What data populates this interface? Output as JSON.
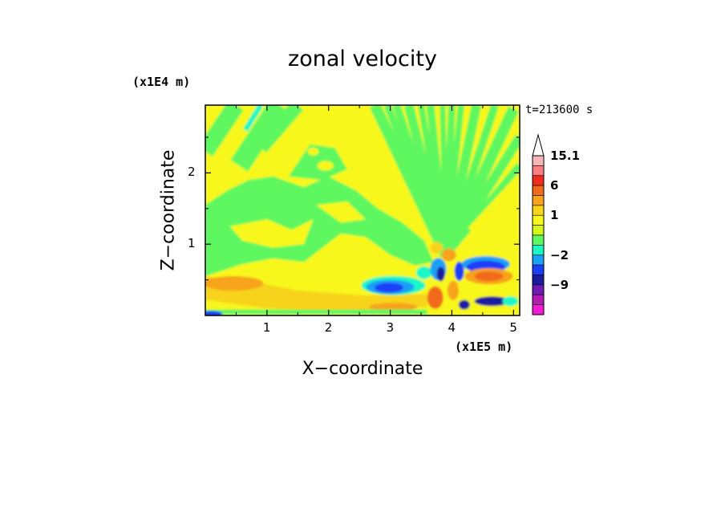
{
  "chart_data": {
    "type": "heatmap",
    "title": "zonal velocity",
    "xlabel": "X−coordinate",
    "ylabel": "Z−coordinate",
    "x_scale_note": "(x1E5 m)",
    "z_scale_note": "(x1E4 m)",
    "time_label": "t=213600 s",
    "xlim": [
      0,
      5.1
    ],
    "ylim": [
      0,
      2.95
    ],
    "x_ticks": [
      "1",
      "2",
      "3",
      "4",
      "5"
    ],
    "x_tick_values": [
      1,
      2,
      3,
      4,
      5
    ],
    "y_ticks": [
      "1",
      "2"
    ],
    "y_tick_values": [
      1,
      2
    ],
    "colorbar": {
      "labels": [
        "15.1",
        "6",
        "1",
        "−2",
        "−9"
      ],
      "label_values": [
        15.1,
        6,
        1,
        -2,
        -9
      ],
      "levels_top_to_bottom": [
        15.1,
        12,
        9,
        6,
        4,
        2,
        1,
        0.5,
        0,
        -1,
        -2,
        -4,
        -6,
        -9,
        -12,
        -15
      ],
      "colors_top_to_bottom": [
        "#f7b6b6",
        "#f77f7f",
        "#f22b1b",
        "#f26b1b",
        "#f7a31b",
        "#f7d31b",
        "#f7f71b",
        "#d3f71b",
        "#5ff760",
        "#1bf7c7",
        "#1b9ff7",
        "#1b3ff7",
        "#1b1b9f",
        "#6f1bb3",
        "#b31bb3",
        "#f21bd3"
      ]
    },
    "field_colors": {
      "background": "#f7f71b",
      "light_positive": "#f7d31b",
      "positive": "#f7a31b",
      "strong_positive": "#f26b1b",
      "weak_negative": "#5ff760",
      "negative": "#1bf7c7",
      "stronger_negative": "#1b9ff7",
      "strong_negative": "#1b3ff7",
      "very_strong_negative": "#1b1b9f"
    },
    "grid": false
  }
}
